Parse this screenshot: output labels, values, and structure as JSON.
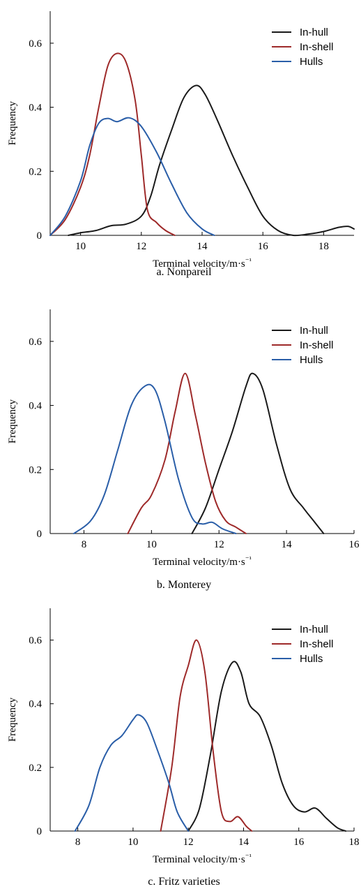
{
  "chart_data": [
    {
      "type": "line",
      "caption": "a. Nonpareil",
      "xlabel": "Terminal velocity/m·s⁻¹",
      "ylabel": "Frequency",
      "xlim": [
        9,
        19
      ],
      "ylim": [
        0,
        0.7
      ],
      "xticks": [
        10,
        12,
        14,
        16,
        18
      ],
      "yticks": [
        0,
        0.2,
        0.4,
        0.6
      ],
      "legend": "top-right",
      "series": [
        {
          "name": "In-hull",
          "color": "#1a1a1a",
          "x": [
            9.6,
            10.0,
            10.5,
            11.0,
            11.5,
            12.0,
            12.3,
            12.6,
            13.0,
            13.4,
            13.8,
            14.1,
            14.5,
            15.0,
            15.5,
            16.0,
            16.5,
            17.0,
            17.5,
            18.0,
            18.5,
            18.8,
            19.0
          ],
          "y": [
            0.0,
            0.008,
            0.015,
            0.03,
            0.035,
            0.06,
            0.12,
            0.22,
            0.33,
            0.43,
            0.468,
            0.44,
            0.36,
            0.25,
            0.15,
            0.06,
            0.015,
            0.0,
            0.004,
            0.012,
            0.025,
            0.028,
            0.02
          ]
        },
        {
          "name": "In-shell",
          "color": "#9e2a2a",
          "x": [
            9.0,
            9.5,
            10.0,
            10.3,
            10.6,
            10.9,
            11.2,
            11.5,
            11.8,
            12.0,
            12.2,
            12.5,
            12.8,
            13.1
          ],
          "y": [
            0.0,
            0.05,
            0.15,
            0.25,
            0.4,
            0.53,
            0.568,
            0.54,
            0.42,
            0.25,
            0.08,
            0.04,
            0.015,
            0.0
          ]
        },
        {
          "name": "Hulls",
          "color": "#2a5ea8",
          "x": [
            9.0,
            9.5,
            10.0,
            10.3,
            10.6,
            10.9,
            11.2,
            11.6,
            12.0,
            12.5,
            13.0,
            13.5,
            14.0,
            14.4
          ],
          "y": [
            0.0,
            0.06,
            0.17,
            0.28,
            0.35,
            0.365,
            0.355,
            0.367,
            0.34,
            0.26,
            0.16,
            0.07,
            0.02,
            0.0
          ]
        }
      ]
    },
    {
      "type": "line",
      "caption": "b. Monterey",
      "xlabel": "Terminal velocity/m·s⁻¹",
      "ylabel": "Frequency",
      "xlim": [
        7,
        16
      ],
      "ylim": [
        0,
        0.7
      ],
      "xticks": [
        8,
        10,
        12,
        14,
        16
      ],
      "yticks": [
        0,
        0.2,
        0.4,
        0.6
      ],
      "legend": "top-right",
      "series": [
        {
          "name": "In-hull",
          "color": "#1a1a1a",
          "x": [
            11.2,
            11.6,
            12.0,
            12.4,
            12.8,
            13.0,
            13.3,
            13.7,
            14.1,
            14.5,
            14.8,
            15.1
          ],
          "y": [
            0.0,
            0.08,
            0.2,
            0.32,
            0.46,
            0.5,
            0.45,
            0.28,
            0.14,
            0.08,
            0.04,
            0.0
          ]
        },
        {
          "name": "In-shell",
          "color": "#9e2a2a",
          "x": [
            9.3,
            9.7,
            10.0,
            10.4,
            10.7,
            11.0,
            11.3,
            11.6,
            11.9,
            12.2,
            12.5,
            12.8
          ],
          "y": [
            0.0,
            0.08,
            0.12,
            0.23,
            0.38,
            0.5,
            0.37,
            0.22,
            0.1,
            0.04,
            0.02,
            0.0
          ]
        },
        {
          "name": "Hulls",
          "color": "#2a5ea8",
          "x": [
            7.7,
            8.2,
            8.6,
            9.0,
            9.4,
            9.8,
            10.1,
            10.4,
            10.8,
            11.2,
            11.5,
            11.8,
            12.1,
            12.5
          ],
          "y": [
            0.0,
            0.04,
            0.12,
            0.26,
            0.4,
            0.46,
            0.45,
            0.35,
            0.17,
            0.05,
            0.03,
            0.035,
            0.015,
            0.0
          ]
        }
      ]
    },
    {
      "type": "line",
      "caption": "c. Fritz varieties",
      "xlabel": "Terminal velocity/m·s⁻¹",
      "ylabel": "Frequency",
      "xlim": [
        7,
        18
      ],
      "ylim": [
        0,
        0.7
      ],
      "xticks": [
        8,
        10,
        12,
        14,
        16,
        18
      ],
      "yticks": [
        0,
        0.2,
        0.4,
        0.6
      ],
      "legend": "top-right",
      "series": [
        {
          "name": "In-hull",
          "color": "#1a1a1a",
          "x": [
            12.0,
            12.4,
            12.8,
            13.2,
            13.6,
            13.9,
            14.2,
            14.6,
            15.0,
            15.4,
            15.8,
            16.2,
            16.6,
            17.0,
            17.4,
            17.7
          ],
          "y": [
            0.0,
            0.07,
            0.24,
            0.44,
            0.53,
            0.5,
            0.4,
            0.36,
            0.27,
            0.15,
            0.08,
            0.06,
            0.072,
            0.04,
            0.01,
            0.0
          ]
        },
        {
          "name": "In-shell",
          "color": "#9e2a2a",
          "x": [
            11.0,
            11.4,
            11.7,
            12.0,
            12.3,
            12.6,
            12.9,
            13.2,
            13.5,
            13.8,
            14.1,
            14.3
          ],
          "y": [
            0.0,
            0.2,
            0.42,
            0.52,
            0.6,
            0.5,
            0.25,
            0.06,
            0.03,
            0.045,
            0.015,
            0.0
          ]
        },
        {
          "name": "Hulls",
          "color": "#2a5ea8",
          "x": [
            7.9,
            8.4,
            8.8,
            9.2,
            9.6,
            10.0,
            10.2,
            10.5,
            10.9,
            11.3,
            11.6,
            12.0
          ],
          "y": [
            0.0,
            0.08,
            0.2,
            0.27,
            0.3,
            0.35,
            0.365,
            0.34,
            0.25,
            0.15,
            0.06,
            0.0
          ]
        }
      ]
    }
  ]
}
